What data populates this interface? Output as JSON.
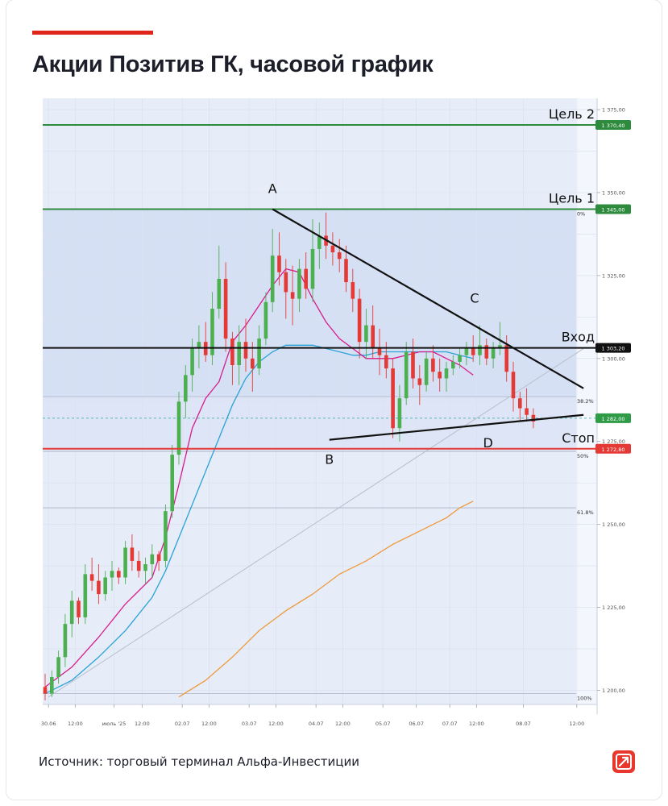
{
  "title": "Акции Позитив ГК,  часовой график",
  "source": "Источник: торговый терминал Альфа-Инвестиции",
  "logo": "alfa-investments-logo",
  "colors": {
    "accent": "#e0251b",
    "bull": "#4caf50",
    "bear": "#e53935",
    "ma_fast": "#d81b8c",
    "ma_mid": "#29a3d8",
    "ma_slow": "#ef9a3c",
    "target": "#2e8b3d",
    "stop": "#e53935",
    "entry": "#111111",
    "zone_dark": "#d6e0f4",
    "zone_light": "#e6ecf8"
  },
  "chart_data": {
    "type": "candlestick",
    "grid": true,
    "ylim": [
      1196,
      1378
    ],
    "y_ticks": [
      {
        "v": 1375,
        "label": "1 375,00"
      },
      {
        "v": 1350,
        "label": "1 350,00"
      },
      {
        "v": 1325,
        "label": "1 325,00"
      },
      {
        "v": 1300,
        "label": "1 300,00"
      },
      {
        "v": 1275,
        "label": "1 275,00"
      },
      {
        "v": 1250,
        "label": "1 250,00"
      },
      {
        "v": 1225,
        "label": "1 225,00"
      },
      {
        "v": 1200,
        "label": "1 200,00"
      }
    ],
    "x_ticks": [
      {
        "t": 0.5,
        "label": "30.06"
      },
      {
        "t": 4.5,
        "label": "12:00"
      },
      {
        "t": 10.3,
        "label": "июль '25"
      },
      {
        "t": 14.5,
        "label": "12:00"
      },
      {
        "t": 20.5,
        "label": "02.07"
      },
      {
        "t": 24.5,
        "label": "12:00"
      },
      {
        "t": 30.5,
        "label": "03.07"
      },
      {
        "t": 34.5,
        "label": "12:00"
      },
      {
        "t": 40.5,
        "label": "04.07"
      },
      {
        "t": 44.5,
        "label": "12:00"
      },
      {
        "t": 50.5,
        "label": "05.07"
      },
      {
        "t": 55.5,
        "label": "06.07"
      },
      {
        "t": 60.5,
        "label": "07.07"
      },
      {
        "t": 64.5,
        "label": "12:00"
      },
      {
        "t": 71.5,
        "label": "08.07"
      },
      {
        "t": 79.5,
        "label": "12:00"
      }
    ],
    "levels": [
      {
        "name": "Цель 2",
        "value": 1370.4,
        "badge": "1 370,40",
        "kind": "target"
      },
      {
        "name": "Цель 1",
        "value": 1345.0,
        "badge": "1 345,00",
        "kind": "target"
      },
      {
        "name": "Вход",
        "value": 1303.2,
        "badge": "1 303,20",
        "kind": "entry"
      },
      {
        "name": "Стоп",
        "value": 1272.8,
        "badge": "1 272,80",
        "kind": "stop"
      }
    ],
    "current_price": {
      "value": 1282.0,
      "badge": "1 282,00"
    },
    "fibonacci": [
      {
        "label": "0%",
        "value": 1345.0
      },
      {
        "label": "38.2%",
        "value": 1288.5
      },
      {
        "label": "50%",
        "value": 1272.0
      },
      {
        "label": "61.8%",
        "value": 1255.0
      },
      {
        "label": "100%",
        "value": 1199.0
      }
    ],
    "pattern_points": [
      {
        "label": "A",
        "t": 34.0,
        "price": 1345.0
      },
      {
        "label": "B",
        "t": 42.5,
        "price": 1275.5
      },
      {
        "label": "C",
        "t": 63.0,
        "price": 1311.0
      },
      {
        "label": "D",
        "t": 65.5,
        "price": 1279.5
      }
    ],
    "trendlines": [
      {
        "t1": 34.0,
        "p1": 1345.0,
        "t2": 80.5,
        "p2": 1291.0
      },
      {
        "t1": 42.5,
        "p1": 1275.5,
        "t2": 80.5,
        "p2": 1283.0
      },
      {
        "t1": 0.5,
        "p1": 1198.0,
        "t2": 80.5,
        "p2": 1303.0
      }
    ],
    "candles": [
      [
        1201,
        1205,
        1197,
        1199
      ],
      [
        1199,
        1206,
        1198,
        1204
      ],
      [
        1204,
        1212,
        1202,
        1210
      ],
      [
        1210,
        1223,
        1207,
        1220
      ],
      [
        1220,
        1230,
        1216,
        1227
      ],
      [
        1227,
        1228,
        1220,
        1222
      ],
      [
        1222,
        1238,
        1220,
        1235
      ],
      [
        1235,
        1240,
        1230,
        1233
      ],
      [
        1233,
        1238,
        1226,
        1229
      ],
      [
        1229,
        1236,
        1227,
        1234
      ],
      [
        1234,
        1239,
        1230,
        1236
      ],
      [
        1236,
        1237,
        1232,
        1234
      ],
      [
        1234,
        1245,
        1232,
        1243
      ],
      [
        1243,
        1247,
        1236,
        1239
      ],
      [
        1239,
        1242,
        1234,
        1236
      ],
      [
        1236,
        1240,
        1232,
        1238
      ],
      [
        1238,
        1244,
        1234,
        1241
      ],
      [
        1241,
        1242,
        1236,
        1239
      ],
      [
        1239,
        1256,
        1237,
        1254
      ],
      [
        1254,
        1274,
        1252,
        1271
      ],
      [
        1271,
        1290,
        1268,
        1287
      ],
      [
        1287,
        1298,
        1282,
        1295
      ],
      [
        1295,
        1306,
        1290,
        1303
      ],
      [
        1303,
        1310,
        1297,
        1305
      ],
      [
        1305,
        1311,
        1299,
        1301
      ],
      [
        1301,
        1320,
        1298,
        1315
      ],
      [
        1315,
        1334,
        1312,
        1324
      ],
      [
        1324,
        1329,
        1302,
        1306
      ],
      [
        1306,
        1308,
        1292,
        1298
      ],
      [
        1298,
        1310,
        1292,
        1305
      ],
      [
        1305,
        1312,
        1296,
        1300
      ],
      [
        1300,
        1305,
        1290,
        1297
      ],
      [
        1297,
        1310,
        1295,
        1306
      ],
      [
        1306,
        1320,
        1304,
        1317
      ],
      [
        1317,
        1339,
        1314,
        1331
      ],
      [
        1331,
        1338,
        1322,
        1326
      ],
      [
        1326,
        1330,
        1312,
        1320
      ],
      [
        1320,
        1328,
        1310,
        1318
      ],
      [
        1318,
        1330,
        1314,
        1327
      ],
      [
        1327,
        1332,
        1318,
        1321
      ],
      [
        1321,
        1342,
        1317,
        1333
      ],
      [
        1333,
        1341,
        1327,
        1337
      ],
      [
        1337,
        1344,
        1330,
        1334
      ],
      [
        1334,
        1338,
        1328,
        1332
      ],
      [
        1332,
        1336,
        1326,
        1330
      ],
      [
        1330,
        1334,
        1320,
        1323
      ],
      [
        1323,
        1327,
        1314,
        1318
      ],
      [
        1318,
        1321,
        1300,
        1305
      ],
      [
        1305,
        1315,
        1300,
        1310
      ],
      [
        1310,
        1316,
        1300,
        1303
      ],
      [
        1303,
        1309,
        1295,
        1301
      ],
      [
        1301,
        1305,
        1294,
        1297
      ],
      [
        1297,
        1300,
        1276,
        1279
      ],
      [
        1279,
        1292,
        1275,
        1288
      ],
      [
        1288,
        1305,
        1286,
        1302
      ],
      [
        1302,
        1306,
        1291,
        1294
      ],
      [
        1294,
        1298,
        1286,
        1292
      ],
      [
        1292,
        1302,
        1290,
        1300
      ],
      [
        1300,
        1304,
        1293,
        1296
      ],
      [
        1296,
        1300,
        1290,
        1294
      ],
      [
        1294,
        1299,
        1290,
        1297
      ],
      [
        1297,
        1301,
        1295,
        1299
      ],
      [
        1299,
        1303,
        1297,
        1301
      ],
      [
        1301,
        1305,
        1298,
        1303
      ],
      [
        1303,
        1307,
        1299,
        1301
      ],
      [
        1301,
        1310,
        1298,
        1304
      ],
      [
        1304,
        1306,
        1298,
        1300
      ],
      [
        1300,
        1305,
        1297,
        1303
      ],
      [
        1303,
        1311,
        1301,
        1304
      ],
      [
        1304,
        1307,
        1293,
        1296
      ],
      [
        1296,
        1299,
        1284,
        1288
      ],
      [
        1288,
        1290,
        1281,
        1285
      ],
      [
        1285,
        1291,
        1281,
        1283
      ],
      [
        1283,
        1285,
        1279,
        1281
      ]
    ],
    "ma_fast": [
      [
        0,
        1201
      ],
      [
        4,
        1207
      ],
      [
        8,
        1216
      ],
      [
        12,
        1226
      ],
      [
        16,
        1234
      ],
      [
        18,
        1246
      ],
      [
        20,
        1262
      ],
      [
        22,
        1279
      ],
      [
        24,
        1288
      ],
      [
        26,
        1293
      ],
      [
        28,
        1305
      ],
      [
        30,
        1310
      ],
      [
        32,
        1316
      ],
      [
        34,
        1322
      ],
      [
        36,
        1327
      ],
      [
        38,
        1326
      ],
      [
        40,
        1318
      ],
      [
        42,
        1311
      ],
      [
        44,
        1306
      ],
      [
        46,
        1303
      ],
      [
        48,
        1300
      ],
      [
        50,
        1300
      ],
      [
        52,
        1300
      ],
      [
        54,
        1301
      ],
      [
        56,
        1302
      ],
      [
        58,
        1302
      ],
      [
        60,
        1300
      ],
      [
        62,
        1298
      ],
      [
        64,
        1295
      ]
    ],
    "ma_mid": [
      [
        0,
        1199
      ],
      [
        4,
        1203
      ],
      [
        8,
        1210
      ],
      [
        12,
        1218
      ],
      [
        16,
        1228
      ],
      [
        18,
        1236
      ],
      [
        20,
        1246
      ],
      [
        22,
        1256
      ],
      [
        24,
        1266
      ],
      [
        26,
        1276
      ],
      [
        28,
        1286
      ],
      [
        30,
        1294
      ],
      [
        32,
        1299
      ],
      [
        34,
        1302
      ],
      [
        36,
        1304
      ],
      [
        38,
        1304
      ],
      [
        40,
        1304
      ],
      [
        42,
        1303
      ],
      [
        44,
        1302
      ],
      [
        46,
        1301
      ],
      [
        48,
        1301
      ],
      [
        50,
        1302
      ],
      [
        52,
        1302
      ],
      [
        54,
        1302
      ],
      [
        56,
        1302
      ],
      [
        58,
        1302
      ],
      [
        60,
        1302
      ],
      [
        62,
        1301
      ],
      [
        64,
        1300
      ]
    ],
    "ma_slow": [
      [
        20,
        1198
      ],
      [
        24,
        1203
      ],
      [
        28,
        1210
      ],
      [
        32,
        1218
      ],
      [
        36,
        1224
      ],
      [
        40,
        1229
      ],
      [
        44,
        1235
      ],
      [
        48,
        1239
      ],
      [
        52,
        1244
      ],
      [
        56,
        1248
      ],
      [
        60,
        1252
      ],
      [
        62,
        1255
      ],
      [
        64,
        1257
      ]
    ]
  }
}
